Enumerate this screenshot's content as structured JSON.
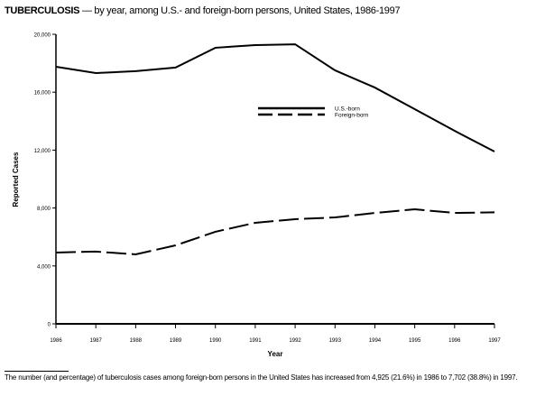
{
  "title_bold": "TUBERCULOSIS",
  "title_rest": " — by year, among U.S.- and foreign-born persons, United States, 1986-1997",
  "chart_data": {
    "type": "line",
    "xlabel": "Year",
    "ylabel": "Reported Cases",
    "x": [
      1986,
      1987,
      1988,
      1989,
      1990,
      1991,
      1992,
      1993,
      1994,
      1995,
      1996,
      1997
    ],
    "xticks": [
      "1986",
      "1987",
      "1988",
      "1989",
      "1990",
      "1991",
      "1992",
      "1993",
      "1994",
      "1995",
      "1996",
      "1997"
    ],
    "ylim": [
      0,
      20000
    ],
    "yticks": [
      0,
      4000,
      8000,
      12000,
      16000,
      20000
    ],
    "ytick_labels": [
      "0",
      "4,000",
      "8,000",
      "12,000",
      "16,000",
      "20,000"
    ],
    "grid": false,
    "legend_position": "center-right",
    "series": [
      {
        "name": "U.S.-born",
        "style": "solid",
        "values": [
          17760,
          17320,
          17450,
          17700,
          19070,
          19250,
          19310,
          17510,
          16320,
          14830,
          13330,
          11900
        ]
      },
      {
        "name": "Foreign-born",
        "style": "dashed",
        "values": [
          4925,
          4990,
          4800,
          5420,
          6360,
          6980,
          7230,
          7350,
          7660,
          7910,
          7660,
          7702
        ]
      }
    ]
  },
  "footnote": "The number (and percentage) of tuberculosis cases among foreign-born persons in the United States has increased from 4,925 (21.6%) in 1986 to 7,702 (38.8%) in 1997."
}
